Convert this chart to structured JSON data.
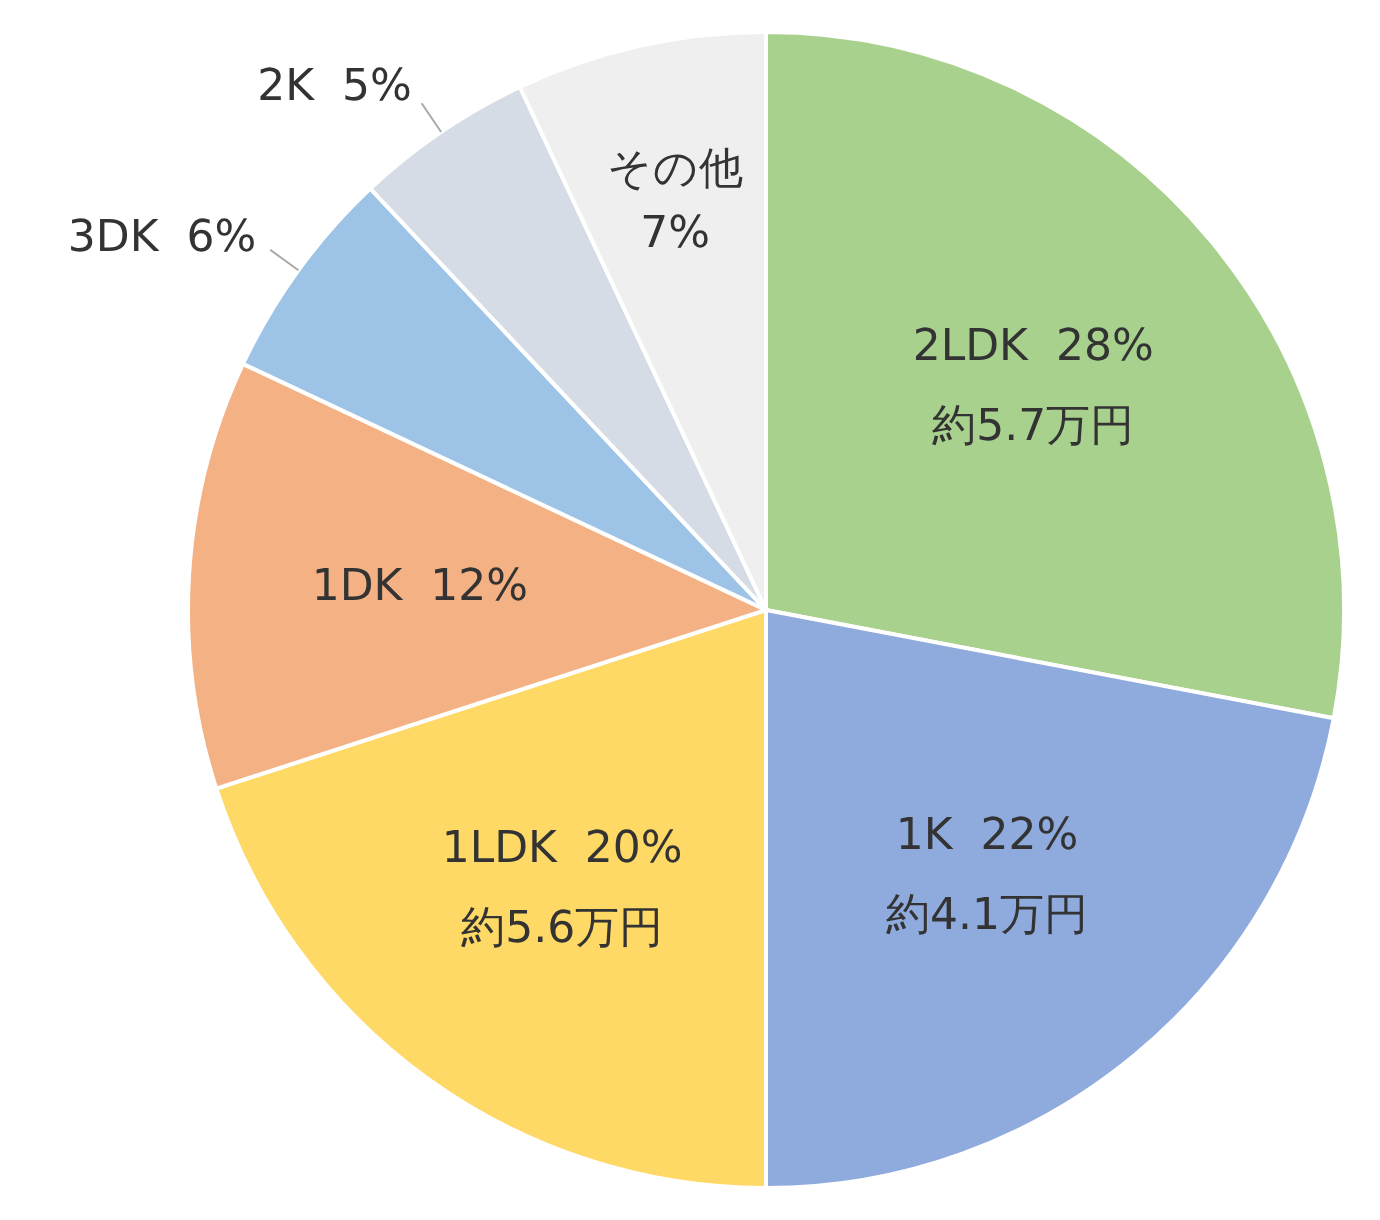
{
  "chart_data": {
    "type": "pie",
    "categories": [
      "2LDK",
      "1K",
      "1LDK",
      "1DK",
      "3DK",
      "2K",
      "その他"
    ],
    "values": [
      28,
      22,
      20,
      12,
      6,
      5,
      7
    ],
    "value_labels": [
      "28%",
      "22%",
      "20%",
      "12%",
      "6%",
      "5%",
      "7%"
    ],
    "colors": [
      "#a9d18e",
      "#8faadc",
      "#ffd966",
      "#f4b183",
      "#9dc3e6",
      "#d6dce5",
      "#efefef"
    ],
    "annotations": [
      {
        "text": "約5.7万円",
        "x": "2LDK"
      },
      {
        "text": "約4.1万円",
        "x": "1K"
      },
      {
        "text": "約5.6万円",
        "x": "1LDK"
      }
    ],
    "legend": false
  }
}
